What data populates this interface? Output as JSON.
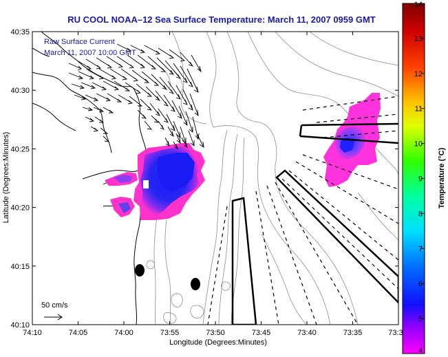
{
  "title": "RU COOL  NOAA–12  Sea Surface Temperature:  March 11, 2007 0959 GMT",
  "legend": {
    "line1": "Raw Surface Current",
    "line2": "March 11, 2007 10:00 GMT"
  },
  "scale_label": "50 cm/s",
  "x_axis": {
    "label": "Longitude (Degrees:Minutes)",
    "ticks": [
      "74:10",
      "74:05",
      "74:00",
      "73:55",
      "73:50",
      "73:45",
      "73:40",
      "73:35",
      "73:3"
    ]
  },
  "y_axis": {
    "label": "Latitude (Degrees:Minutes)",
    "ticks": [
      "40:35",
      "40:30",
      "40:25",
      "40:20",
      "40:15",
      "40:10"
    ]
  },
  "colorbar": {
    "label": "Temperature (°C)",
    "min": 4,
    "max": 14,
    "ticks": [
      "14",
      "13",
      "12",
      "11",
      "10",
      "9",
      "8",
      "7",
      "6",
      "5",
      "4"
    ],
    "colors": [
      "#ff00ff",
      "#0000ff",
      "#00ffff",
      "#00ff00",
      "#ffff00",
      "#ff8000",
      "#ff0000",
      "#800000"
    ]
  },
  "colors": {
    "title": "#1a1aa6",
    "sst_warm": "#ff33cc",
    "sst_cold": "#1e1ef0"
  }
}
